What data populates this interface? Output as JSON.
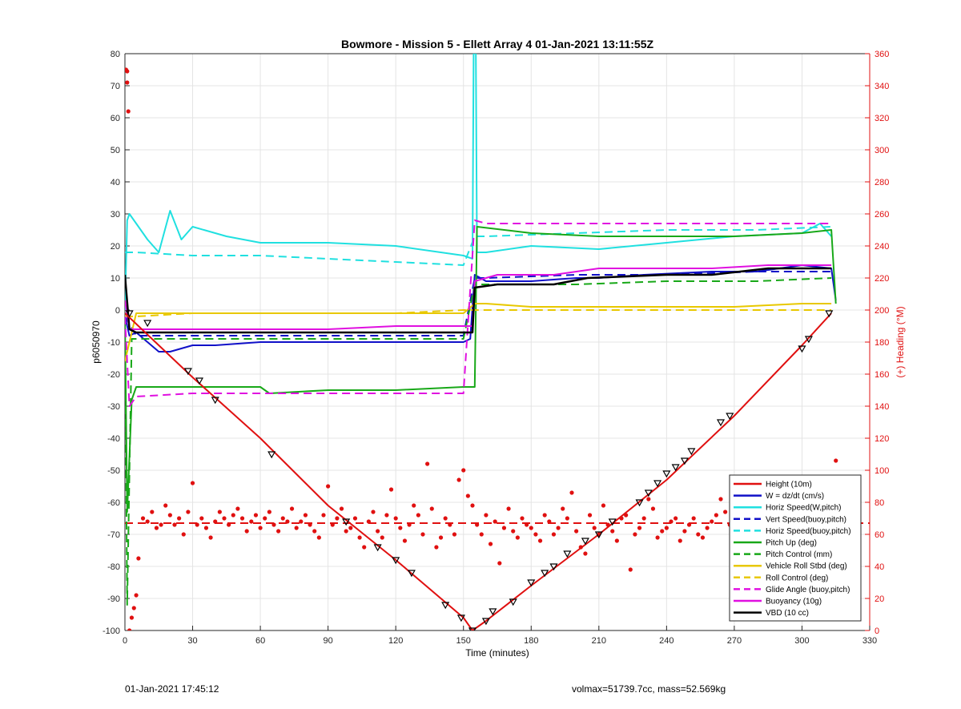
{
  "chart_data": {
    "type": "line",
    "title": "Bowmore - Mission 5 - Ellett Array 4 01-Jan-2021 13:11:55Z",
    "xlabel": "Time (minutes)",
    "ylabel_left": "p6050970",
    "ylabel_right": "(+) Heading (°M)",
    "xlim": [
      0,
      330
    ],
    "ylim_left": [
      -100,
      80
    ],
    "ylim_right": [
      0,
      360
    ],
    "x_ticks": [
      0,
      30,
      60,
      90,
      120,
      150,
      180,
      210,
      240,
      270,
      300,
      330
    ],
    "y_ticks_left": [
      -100,
      -90,
      -80,
      -70,
      -60,
      -50,
      -40,
      -30,
      -20,
      -10,
      0,
      10,
      20,
      30,
      40,
      50,
      60,
      70,
      80
    ],
    "y_ticks_right": [
      0,
      20,
      40,
      60,
      80,
      100,
      120,
      140,
      160,
      180,
      200,
      220,
      240,
      260,
      280,
      300,
      320,
      340,
      360
    ],
    "grid": true,
    "legend_position": "bottom-right",
    "series": [
      {
        "name": "Height (10m)",
        "color": "#e01010",
        "style": "solid",
        "width": 2,
        "x": [
          0,
          30,
          60,
          90,
          120,
          150,
          154,
          160,
          180,
          210,
          240,
          270,
          300,
          313
        ],
        "y": [
          -1,
          -21,
          -40,
          -61,
          -78,
          -96,
          -100,
          -97,
          -86,
          -70,
          -53,
          -33,
          -11,
          -1
        ]
      },
      {
        "name": "W = dz/dt (cm/s)",
        "color": "#1010c8",
        "style": "solid",
        "width": 2,
        "x": [
          0,
          2,
          5,
          10,
          15,
          20,
          30,
          40,
          60,
          90,
          120,
          150,
          153,
          155,
          160,
          180,
          200,
          210,
          230,
          260,
          280,
          300,
          313,
          315
        ],
        "y": [
          -2,
          -8,
          -7,
          -10,
          -13,
          -13,
          -11,
          -11,
          -10,
          -10,
          -10,
          -10,
          -9,
          11,
          9,
          9,
          10,
          10,
          11,
          12,
          12,
          14,
          13,
          3
        ]
      },
      {
        "name": "Horiz Speed(W,pitch)",
        "color": "#20e0e0",
        "style": "solid",
        "width": 2,
        "x": [
          0,
          1,
          2,
          5,
          10,
          15,
          20,
          25,
          30,
          45,
          60,
          90,
          120,
          150,
          154,
          154.5,
          155.5,
          156,
          160,
          180,
          210,
          240,
          270,
          300,
          308,
          313
        ],
        "y": [
          0,
          28,
          30,
          27,
          22,
          18,
          31,
          22,
          26,
          23,
          21,
          21,
          20,
          17,
          16,
          80,
          80,
          18,
          18,
          20,
          19,
          21,
          23,
          24,
          27,
          23
        ]
      },
      {
        "name": "Vert Speed(buoy,pitch)",
        "color": "#1010c8",
        "style": "dashed",
        "width": 2,
        "x": [
          0,
          5,
          30,
          60,
          90,
          120,
          150,
          155,
          160,
          200,
          240,
          280,
          313
        ],
        "y": [
          -2,
          -8,
          -8,
          -8,
          -8,
          -8,
          -8,
          10,
          10,
          11,
          11,
          12,
          12
        ]
      },
      {
        "name": "Horiz Speed(buoy,pitch)",
        "color": "#20e0e0",
        "style": "dashed",
        "width": 2,
        "x": [
          0,
          5,
          30,
          60,
          90,
          120,
          150,
          155,
          160,
          200,
          240,
          280,
          313
        ],
        "y": [
          18,
          18,
          17,
          17,
          16,
          15,
          14,
          23,
          23,
          24,
          25,
          25,
          26
        ]
      },
      {
        "name": "Pitch Up (deg)",
        "color": "#18a818",
        "style": "solid",
        "width": 2,
        "x": [
          0,
          1,
          3,
          5,
          30,
          60,
          64,
          90,
          120,
          150,
          155,
          156,
          180,
          210,
          240,
          270,
          300,
          313,
          315
        ],
        "y": [
          -2,
          -63,
          -28,
          -24,
          -24,
          -24,
          -26,
          -25,
          -25,
          -24,
          -24,
          26,
          24,
          23,
          23,
          23,
          24,
          25,
          2
        ]
      },
      {
        "name": "Pitch Control (mm)",
        "color": "#18a818",
        "style": "dashed",
        "width": 2,
        "x": [
          0,
          1,
          3,
          30,
          60,
          90,
          120,
          150,
          155,
          160,
          200,
          240,
          280,
          313
        ],
        "y": [
          -2,
          -92,
          -9,
          -9,
          -9,
          -9,
          -9,
          -9,
          8,
          8,
          8,
          9,
          9,
          10
        ]
      },
      {
        "name": "Vehicle Roll Stbd (deg)",
        "color": "#e8c800",
        "style": "solid",
        "width": 2,
        "x": [
          0,
          5,
          30,
          60,
          90,
          120,
          150,
          155,
          160,
          180,
          210,
          240,
          270,
          300,
          313
        ],
        "y": [
          -16,
          -1,
          -1,
          -1,
          -1,
          -1,
          -1,
          2,
          2,
          1,
          1,
          1,
          1,
          2,
          2
        ]
      },
      {
        "name": "Roll Control (deg)",
        "color": "#e8c800",
        "style": "dashed",
        "width": 2,
        "x": [
          0,
          5,
          30,
          60,
          90,
          120,
          150,
          155,
          160,
          180,
          210,
          240,
          270,
          300,
          313
        ],
        "y": [
          -2,
          -2,
          -1,
          -1,
          -1,
          -1,
          0,
          0,
          0,
          0,
          0,
          0,
          0,
          0,
          0
        ]
      },
      {
        "name": "Glide Angle (buoy,pitch)",
        "color": "#e010e0",
        "style": "dashed",
        "width": 2,
        "x": [
          0,
          2,
          5,
          30,
          60,
          90,
          120,
          150,
          155,
          160,
          200,
          240,
          280,
          313
        ],
        "y": [
          -2,
          -30,
          -27,
          -26,
          -26,
          -26,
          -26,
          -26,
          28,
          27,
          27,
          27,
          27,
          27
        ]
      },
      {
        "name": "Buoyancy (10g)",
        "color": "#e010e0",
        "style": "solid",
        "width": 2,
        "x": [
          0,
          2,
          5,
          30,
          60,
          90,
          120,
          150,
          154,
          155,
          165,
          190,
          210,
          240,
          260,
          285,
          313
        ],
        "y": [
          3,
          -6,
          -6,
          -6,
          -6,
          -6,
          -5,
          -5,
          -5,
          9,
          11,
          11,
          13,
          13,
          13,
          14,
          14
        ]
      },
      {
        "name": "VBD (10 cc)",
        "color": "#000000",
        "style": "solid",
        "width": 2.5,
        "x": [
          0,
          2,
          5,
          30,
          60,
          90,
          120,
          150,
          154,
          155,
          165,
          190,
          205,
          240,
          260,
          285,
          313
        ],
        "y": [
          11,
          -6,
          -7,
          -7,
          -7,
          -7,
          -7,
          -7,
          -7,
          7,
          8,
          8,
          10,
          11,
          11,
          13,
          13
        ]
      }
    ],
    "heading_points": {
      "name": "Heading",
      "color": "#e01010",
      "axis": "right",
      "x": [
        0.5,
        1,
        1.5,
        1,
        2,
        3,
        4,
        5,
        6,
        8,
        10,
        12,
        14,
        16,
        18,
        20,
        22,
        24,
        26,
        28,
        30,
        32,
        34,
        36,
        38,
        40,
        42,
        44,
        46,
        48,
        50,
        52,
        54,
        56,
        58,
        60,
        62,
        64,
        66,
        68,
        70,
        72,
        74,
        76,
        78,
        80,
        82,
        84,
        86,
        88,
        90,
        92,
        94,
        96,
        98,
        100,
        102,
        104,
        106,
        108,
        110,
        112,
        114,
        116,
        118,
        120,
        122,
        124,
        126,
        128,
        130,
        132,
        134,
        136,
        138,
        140,
        142,
        144,
        146,
        148,
        150,
        152,
        154,
        156,
        158,
        160,
        162,
        164,
        166,
        168,
        170,
        172,
        174,
        176,
        178,
        180,
        182,
        184,
        186,
        188,
        190,
        192,
        194,
        196,
        198,
        200,
        202,
        204,
        206,
        208,
        210,
        212,
        214,
        216,
        218,
        220,
        222,
        224,
        226,
        228,
        230,
        232,
        234,
        236,
        238,
        240,
        242,
        244,
        246,
        248,
        250,
        252,
        254,
        256,
        258,
        260,
        262,
        264,
        266,
        268,
        270,
        272,
        274,
        276,
        278,
        280,
        282,
        284,
        286,
        288,
        290,
        292,
        294,
        296,
        298,
        300,
        302,
        304,
        306,
        308,
        310,
        312,
        314,
        315
      ],
      "y": [
        350,
        349,
        324,
        342,
        0,
        8,
        14,
        22,
        45,
        70,
        68,
        74,
        64,
        66,
        78,
        72,
        66,
        70,
        60,
        74,
        92,
        66,
        70,
        64,
        58,
        68,
        74,
        70,
        66,
        72,
        76,
        70,
        62,
        68,
        72,
        64,
        70,
        74,
        66,
        62,
        70,
        68,
        76,
        64,
        68,
        72,
        66,
        62,
        58,
        72,
        90,
        66,
        70,
        76,
        62,
        64,
        70,
        58,
        52,
        68,
        74,
        62,
        58,
        72,
        88,
        70,
        64,
        56,
        66,
        78,
        72,
        60,
        104,
        76,
        52,
        58,
        70,
        66,
        60,
        94,
        100,
        84,
        78,
        66,
        60,
        72,
        54,
        68,
        42,
        64,
        76,
        62,
        58,
        70,
        66,
        64,
        60,
        56,
        72,
        68,
        60,
        64,
        76,
        70,
        86,
        62,
        52,
        48,
        72,
        64,
        60,
        78,
        66,
        62,
        56,
        70,
        72,
        38,
        60,
        64,
        70,
        82,
        76,
        58,
        62,
        64,
        68,
        70,
        56,
        62,
        66,
        70,
        60,
        58,
        64,
        68,
        72,
        82,
        74,
        66,
        60,
        62,
        58,
        64,
        66,
        56,
        60,
        62,
        64,
        70,
        66,
        62,
        58,
        54,
        60,
        64,
        62,
        66,
        60,
        58,
        62,
        66,
        64,
        106
      ]
    },
    "heading_mean": {
      "name": "Heading mean",
      "color": "#e01010",
      "style": "dashed",
      "axis": "right",
      "value": 67
    },
    "markers": {
      "x": [
        2,
        10,
        28,
        33,
        40,
        65,
        98,
        112,
        120,
        127,
        142,
        149,
        154,
        160,
        163,
        172,
        180,
        186,
        190,
        196,
        204,
        210,
        216,
        228,
        232,
        236,
        240,
        244,
        248,
        251,
        264,
        268,
        300,
        303,
        312
      ],
      "y": [
        -1,
        -4,
        -19,
        -22,
        -28,
        -45,
        -66,
        -74,
        -78,
        -82,
        -92,
        -96,
        -100,
        -97,
        -94,
        -91,
        -85,
        -82,
        -80,
        -76,
        -72,
        -70,
        -66,
        -60,
        -57,
        -54,
        -51,
        -49,
        -47,
        -44,
        -35,
        -33,
        -12,
        -9,
        -1
      ]
    }
  },
  "legend": {
    "entries": [
      "Height (10m)",
      "W = dz/dt (cm/s)",
      "Horiz Speed(W,pitch)",
      "Vert Speed(buoy,pitch)",
      "Horiz Speed(buoy,pitch)",
      "Pitch Up (deg)",
      "Pitch Control (mm)",
      "Vehicle Roll Stbd (deg)",
      "Roll Control (deg)",
      "Glide Angle (buoy,pitch)",
      "Buoyancy (10g)",
      "VBD (10 cc)"
    ]
  },
  "footer": {
    "left": "01-Jan-2021 17:45:12",
    "right": "volmax=51739.7cc, mass=52.569kg"
  }
}
